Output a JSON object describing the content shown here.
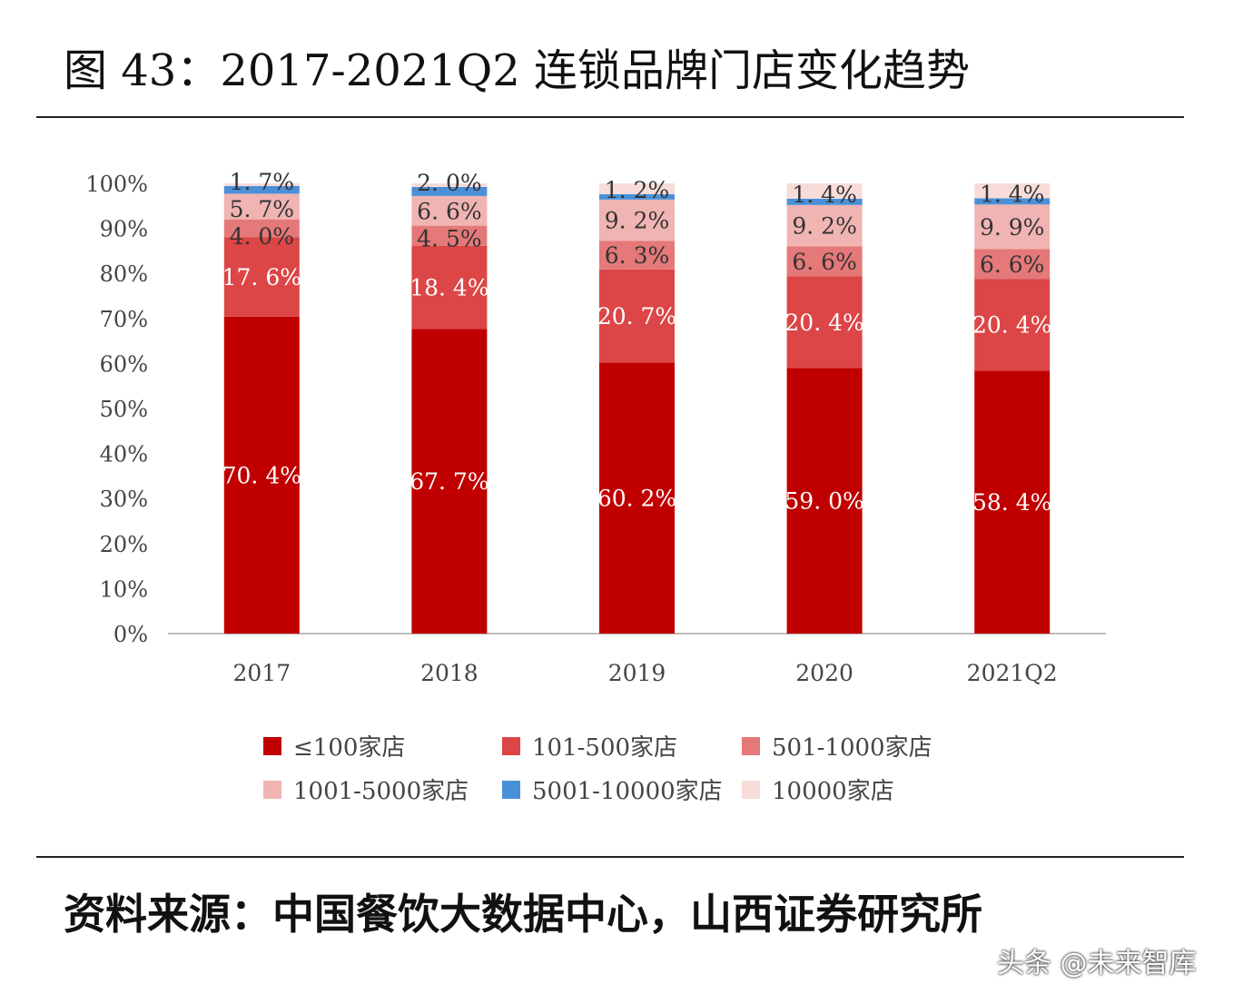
{
  "title": "图 43：2017-2021Q2 连锁品牌门店变化趋势",
  "source": "资料来源：中国餐饮大数据中心，山西证券研究所",
  "watermark": "头条 @未来智库",
  "chart_data": {
    "type": "bar",
    "stacked": true,
    "percent": true,
    "categories": [
      "2017",
      "2018",
      "2019",
      "2020",
      "2021Q2"
    ],
    "ylim": [
      0,
      100
    ],
    "yticks": [
      "0%",
      "10%",
      "20%",
      "30%",
      "40%",
      "50%",
      "60%",
      "70%",
      "80%",
      "90%",
      "100%"
    ],
    "legend_position": "bottom",
    "grid": false,
    "series": [
      {
        "name": "≤100家店",
        "color": "#c00000",
        "values": [
          70.4,
          67.7,
          60.2,
          59.0,
          58.4
        ],
        "labels": [
          "70. 4%",
          "67. 7%",
          "60. 2%",
          "59. 0%",
          "58. 4%"
        ],
        "label_color": "#ffffff"
      },
      {
        "name": "101-500家店",
        "color": "#dc4646",
        "values": [
          17.6,
          18.4,
          20.7,
          20.4,
          20.4
        ],
        "labels": [
          "17. 6%",
          "18. 4%",
          "20. 7%",
          "20. 4%",
          "20. 4%"
        ],
        "label_color": "#ffffff"
      },
      {
        "name": "501-1000家店",
        "color": "#e57878",
        "values": [
          4.0,
          4.5,
          6.3,
          6.6,
          6.6
        ],
        "labels": [
          "4. 0%",
          "4. 5%",
          "6. 3%",
          "6. 6%",
          "6. 6%"
        ],
        "label_color": "#333333"
      },
      {
        "name": "1001-5000家店",
        "color": "#f0b4b2",
        "values": [
          5.7,
          6.6,
          9.2,
          9.2,
          9.9
        ],
        "labels": [
          "5. 7%",
          "6. 6%",
          "9. 2%",
          "9. 2%",
          "9. 9%"
        ],
        "label_color": "#333333"
      },
      {
        "name": "5001-10000家店",
        "color": "#4a90d9",
        "values": [
          1.7,
          2.0,
          1.2,
          1.4,
          1.4
        ],
        "labels": [
          "1. 7%",
          "2. 0%",
          "1. 2%",
          "1. 4%",
          "1. 4%"
        ],
        "label_color": "#333333"
      },
      {
        "name": "10000家店",
        "color": "#f7dcda",
        "values": [
          0.6,
          0.8,
          2.4,
          3.4,
          3.3
        ],
        "labels": [
          "",
          "",
          "",
          "",
          ""
        ],
        "label_color": "#333333"
      }
    ]
  }
}
